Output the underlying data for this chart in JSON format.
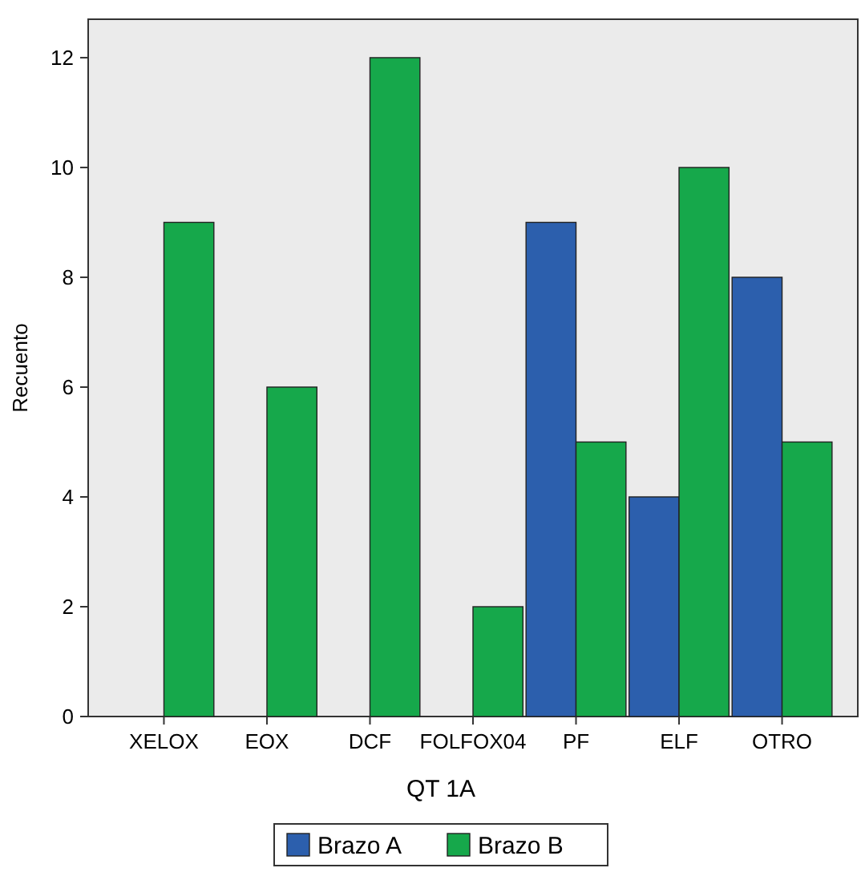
{
  "chart_data": {
    "type": "bar",
    "xlabel": "QT 1A",
    "ylabel": "Recuento",
    "categories": [
      "XELOX",
      "EOX",
      "DCF",
      "FOLFOX04",
      "PF",
      "ELF",
      "OTRO"
    ],
    "series": [
      {
        "name": "Brazo A",
        "color": "#2c5fad",
        "values": [
          0,
          0,
          0,
          0,
          9,
          4,
          8
        ]
      },
      {
        "name": "Brazo B",
        "color": "#16a84b",
        "values": [
          9,
          6,
          12,
          2,
          5,
          10,
          5
        ]
      }
    ],
    "ylim": [
      0,
      12.7
    ],
    "yticks": [
      0,
      2,
      4,
      6,
      8,
      10,
      12
    ],
    "grid": false,
    "legend": "bottom"
  }
}
